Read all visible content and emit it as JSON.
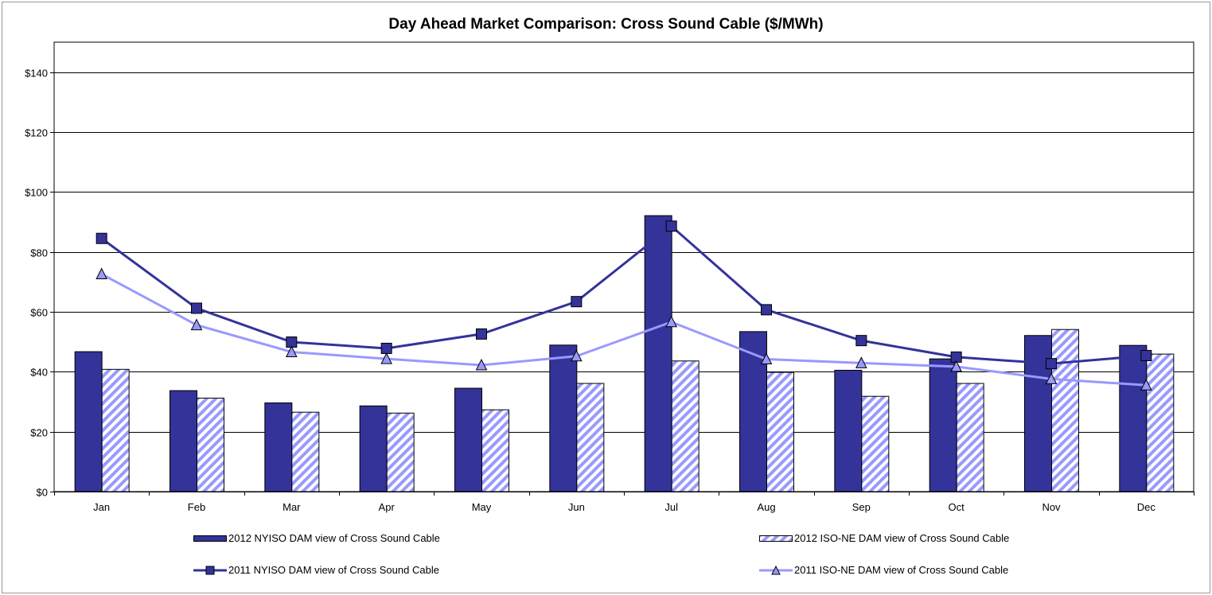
{
  "chart_data": {
    "type": "bar",
    "title": "Day Ahead Market Comparison: Cross Sound Cable ($/MWh)",
    "xlabel": "",
    "ylabel": "",
    "ylim": [
      0,
      150
    ],
    "yticks": [
      0,
      20,
      40,
      60,
      80,
      100,
      120,
      140
    ],
    "ytick_labels": [
      "$0",
      "$20",
      "$40",
      "$60",
      "$80",
      "$100",
      "$120",
      "$140"
    ],
    "grid": true,
    "legend_position": "bottom",
    "categories": [
      "Jan",
      "Feb",
      "Mar",
      "Apr",
      "May",
      "Jun",
      "Jul",
      "Aug",
      "Sep",
      "Oct",
      "Nov",
      "Dec"
    ],
    "series": [
      {
        "name": "2012 NYISO DAM view of Cross Sound Cable",
        "kind": "bar",
        "style": "solid",
        "color": "#333399",
        "values": [
          46.7,
          33.7,
          29.6,
          28.6,
          34.5,
          48.9,
          92.1,
          53.4,
          40.5,
          44.3,
          52.1,
          48.8
        ]
      },
      {
        "name": "2012 ISO-NE DAM view of Cross Sound Cable",
        "kind": "bar",
        "style": "hatched",
        "color": "#9999ff",
        "values": [
          40.8,
          31.2,
          26.5,
          26.2,
          27.3,
          36.1,
          43.6,
          39.8,
          31.8,
          36.1,
          54.1,
          45.9
        ]
      },
      {
        "name": "2011 NYISO DAM view of Cross Sound Cable",
        "kind": "line",
        "marker": "square",
        "color": "#333399",
        "values": [
          84.5,
          61.2,
          49.9,
          47.8,
          52.6,
          63.4,
          88.6,
          60.7,
          50.4,
          44.9,
          42.7,
          45.4
        ]
      },
      {
        "name": "2011 ISO-NE DAM view of Cross Sound Cable",
        "kind": "line",
        "marker": "triangle",
        "color": "#9999ff",
        "values": [
          72.6,
          55.6,
          46.6,
          44.3,
          42.2,
          45.2,
          56.6,
          44.2,
          42.9,
          41.7,
          37.6,
          35.5
        ]
      }
    ]
  }
}
